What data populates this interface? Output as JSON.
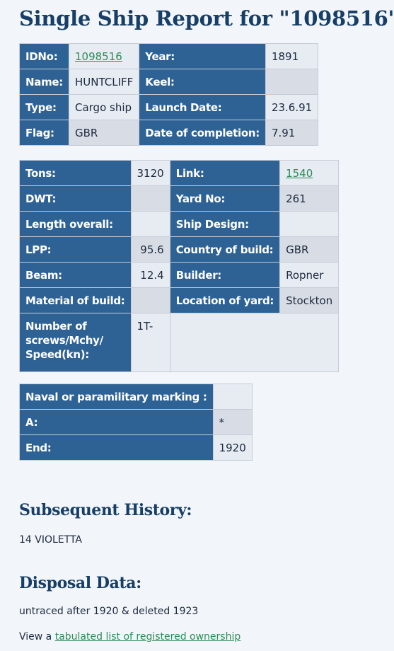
{
  "page": {
    "title": "Single Ship Report for \"1098516\""
  },
  "general": {
    "idno_label": "IDNo:",
    "idno_value": "1098516",
    "year_label": "Year:",
    "year_value": "1891",
    "name_label": "Name:",
    "name_value": "HUNTCLIFF",
    "keel_label": "Keel:",
    "keel_value": "",
    "type_label": "Type:",
    "type_value": "Cargo ship",
    "launch_label": "Launch Date:",
    "launch_value": "23.6.91",
    "flag_label": "Flag:",
    "flag_value": "GBR",
    "completion_label": "Date of completion:",
    "completion_value": "7.91"
  },
  "specs": {
    "tons_label": "Tons:",
    "tons_value": "3120",
    "link_label": "Link:",
    "link_value": "1540",
    "dwt_label": "DWT:",
    "dwt_value": "",
    "yard_label": "Yard No:",
    "yard_value": "261",
    "length_label": "Length overall:",
    "length_value": "",
    "design_label": "Ship Design:",
    "design_value": "",
    "lpp_label": "LPP:",
    "lpp_value": "95.6",
    "country_label": "Country of build:",
    "country_value": "GBR",
    "beam_label": "Beam:",
    "beam_value": "12.4",
    "builder_label": "Builder:",
    "builder_value": "Ropner",
    "material_label": "Material of build:",
    "material_value": "",
    "location_label": "Location of yard:",
    "location_value": "Stockton",
    "screws_label": "Number of screws/Mchy/ Speed(kn):",
    "screws_value": "1T-"
  },
  "naval": {
    "marking_label": "Naval or paramilitary marking :",
    "marking_value": "",
    "a_label": "A:",
    "a_value": "*",
    "end_label": "End:",
    "end_value": "1920"
  },
  "history": {
    "heading": "Subsequent History:",
    "text": "14 VIOLETTA"
  },
  "disposal": {
    "heading": "Disposal Data:",
    "text": "untraced after 1920 & deleted 1923",
    "ownership_prefix": "View a ",
    "ownership_link": "tabulated list of registered ownership"
  },
  "colors": {
    "label_bg": "#2e6294",
    "heading": "#163e66",
    "link": "#2e8b57",
    "page_bg": "#f2f5f9"
  }
}
